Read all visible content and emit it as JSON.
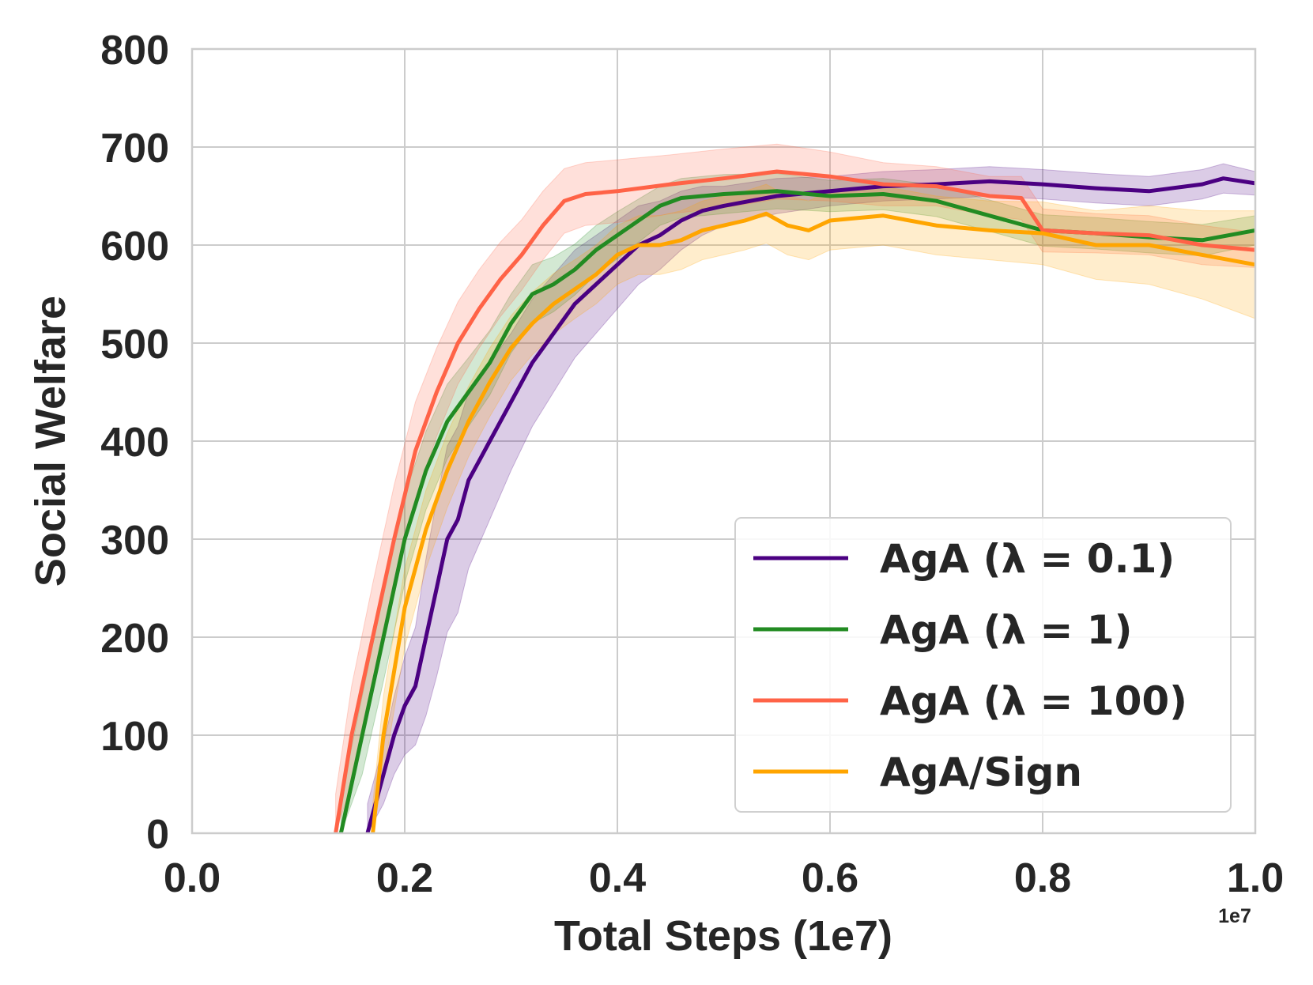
{
  "chart_data": {
    "type": "line",
    "xlabel": "Total Steps (1e7)",
    "ylabel": "Social Welfare",
    "offset_label": "1e7",
    "xlim": [
      0.0,
      1.0
    ],
    "ylim": [
      0,
      800
    ],
    "x_ticks": [
      "0.0",
      "0.2",
      "0.4",
      "0.6",
      "0.8",
      "1.0"
    ],
    "y_ticks": [
      "0",
      "100",
      "200",
      "300",
      "400",
      "500",
      "600",
      "700",
      "800"
    ],
    "grid": true,
    "legend_position": "lower-right",
    "series": [
      {
        "name": "AgA (λ = 0.1)",
        "color": "#4b0082",
        "x": [
          0.165,
          0.18,
          0.19,
          0.2,
          0.21,
          0.22,
          0.23,
          0.24,
          0.25,
          0.26,
          0.27,
          0.28,
          0.3,
          0.32,
          0.34,
          0.36,
          0.38,
          0.4,
          0.42,
          0.44,
          0.46,
          0.48,
          0.5,
          0.55,
          0.6,
          0.65,
          0.7,
          0.75,
          0.8,
          0.85,
          0.9,
          0.95,
          0.97,
          1.0
        ],
        "values": [
          0,
          60,
          100,
          130,
          150,
          200,
          250,
          300,
          320,
          360,
          380,
          400,
          440,
          480,
          510,
          540,
          560,
          580,
          600,
          610,
          625,
          635,
          640,
          650,
          655,
          660,
          662,
          665,
          662,
          658,
          655,
          662,
          668,
          663
        ],
        "band": [
          30,
          30,
          40,
          50,
          60,
          80,
          90,
          95,
          95,
          90,
          85,
          80,
          70,
          65,
          60,
          55,
          50,
          45,
          40,
          35,
          30,
          25,
          20,
          18,
          15,
          15,
          15,
          15,
          15,
          15,
          15,
          15,
          15,
          12
        ]
      },
      {
        "name": "AgA (λ = 1)",
        "color": "#228b22",
        "x": [
          0.14,
          0.16,
          0.18,
          0.2,
          0.22,
          0.24,
          0.26,
          0.28,
          0.3,
          0.32,
          0.34,
          0.36,
          0.38,
          0.4,
          0.42,
          0.44,
          0.46,
          0.48,
          0.5,
          0.55,
          0.6,
          0.65,
          0.7,
          0.75,
          0.8,
          0.85,
          0.9,
          0.95,
          1.0
        ],
        "values": [
          0,
          100,
          200,
          300,
          370,
          420,
          450,
          480,
          520,
          550,
          560,
          575,
          595,
          610,
          625,
          640,
          648,
          650,
          652,
          655,
          650,
          652,
          645,
          630,
          615,
          612,
          608,
          605,
          615
        ],
        "band": [
          35,
          40,
          45,
          45,
          40,
          38,
          35,
          33,
          30,
          30,
          28,
          26,
          25,
          24,
          22,
          20,
          20,
          20,
          20,
          18,
          16,
          16,
          16,
          16,
          16,
          16,
          16,
          16,
          15
        ]
      },
      {
        "name": "AgA (λ = 100)",
        "color": "#ff6347",
        "x": [
          0.135,
          0.15,
          0.17,
          0.19,
          0.21,
          0.23,
          0.25,
          0.27,
          0.29,
          0.31,
          0.33,
          0.35,
          0.37,
          0.4,
          0.45,
          0.5,
          0.55,
          0.6,
          0.65,
          0.7,
          0.75,
          0.78,
          0.8,
          0.85,
          0.9,
          0.95,
          1.0
        ],
        "values": [
          0,
          100,
          200,
          300,
          390,
          450,
          500,
          535,
          565,
          590,
          620,
          645,
          652,
          655,
          662,
          668,
          675,
          670,
          662,
          660,
          650,
          648,
          615,
          612,
          610,
          600,
          595
        ],
        "band": [
          40,
          50,
          55,
          55,
          50,
          45,
          42,
          40,
          38,
          36,
          35,
          33,
          32,
          32,
          30,
          30,
          28,
          25,
          22,
          20,
          20,
          22,
          22,
          20,
          20,
          20,
          18
        ]
      },
      {
        "name": "AgA/Sign",
        "color": "#ffa500",
        "x": [
          0.17,
          0.18,
          0.2,
          0.22,
          0.24,
          0.26,
          0.28,
          0.3,
          0.32,
          0.34,
          0.36,
          0.38,
          0.4,
          0.42,
          0.44,
          0.46,
          0.48,
          0.5,
          0.52,
          0.54,
          0.56,
          0.58,
          0.6,
          0.65,
          0.7,
          0.75,
          0.8,
          0.85,
          0.9,
          0.95,
          1.0
        ],
        "values": [
          0,
          100,
          230,
          310,
          370,
          420,
          460,
          495,
          520,
          540,
          555,
          570,
          590,
          600,
          600,
          605,
          615,
          620,
          625,
          632,
          620,
          615,
          625,
          630,
          620,
          615,
          612,
          600,
          600,
          590,
          580
        ],
        "band": [
          30,
          40,
          40,
          40,
          38,
          36,
          35,
          33,
          32,
          31,
          30,
          30,
          30,
          30,
          30,
          30,
          30,
          30,
          30,
          30,
          30,
          30,
          30,
          30,
          30,
          30,
          32,
          35,
          40,
          45,
          55
        ]
      }
    ]
  }
}
